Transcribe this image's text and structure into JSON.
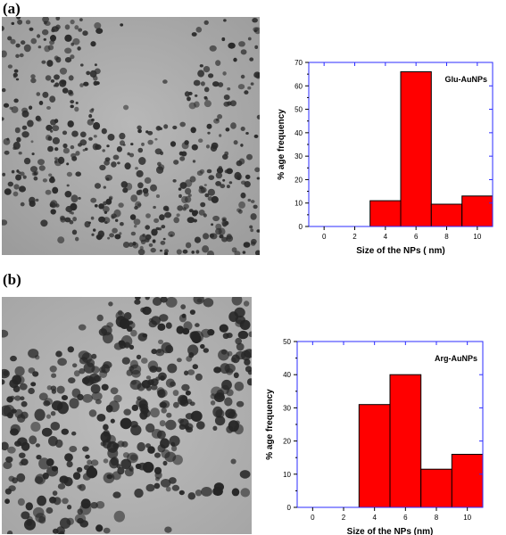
{
  "panels": [
    {
      "label": "(a)",
      "chart_data": {
        "type": "bar",
        "annotation": "Glu-AuNPs",
        "xlabel": "Size of the NPs ( nm)",
        "ylabel": "% age frequency",
        "categories": [
          4,
          6,
          8,
          10
        ],
        "values": [
          11,
          66,
          9.5,
          13
        ],
        "xticks": [
          0,
          2,
          4,
          6,
          8,
          10
        ],
        "yticks": [
          0,
          10,
          20,
          30,
          40,
          50,
          60,
          70
        ],
        "xlim": [
          -1,
          11
        ],
        "ylim": [
          0,
          70
        ],
        "bar_color": "#ff0000",
        "frame_color": "#2b2bff"
      }
    },
    {
      "label": "(b)",
      "chart_data": {
        "type": "bar",
        "annotation": "Arg-AuNPs",
        "xlabel": "Size of the NPs (nm)",
        "ylabel": "% age frequency",
        "categories": [
          4,
          6,
          8,
          10
        ],
        "values": [
          31,
          40,
          11.5,
          16
        ],
        "xticks": [
          0,
          2,
          4,
          6,
          8,
          10
        ],
        "yticks": [
          0,
          10,
          20,
          30,
          40,
          50
        ],
        "xlim": [
          -1,
          11
        ],
        "ylim": [
          0,
          50
        ],
        "bar_color": "#ff0000",
        "frame_color": "#2b2bff"
      }
    }
  ]
}
